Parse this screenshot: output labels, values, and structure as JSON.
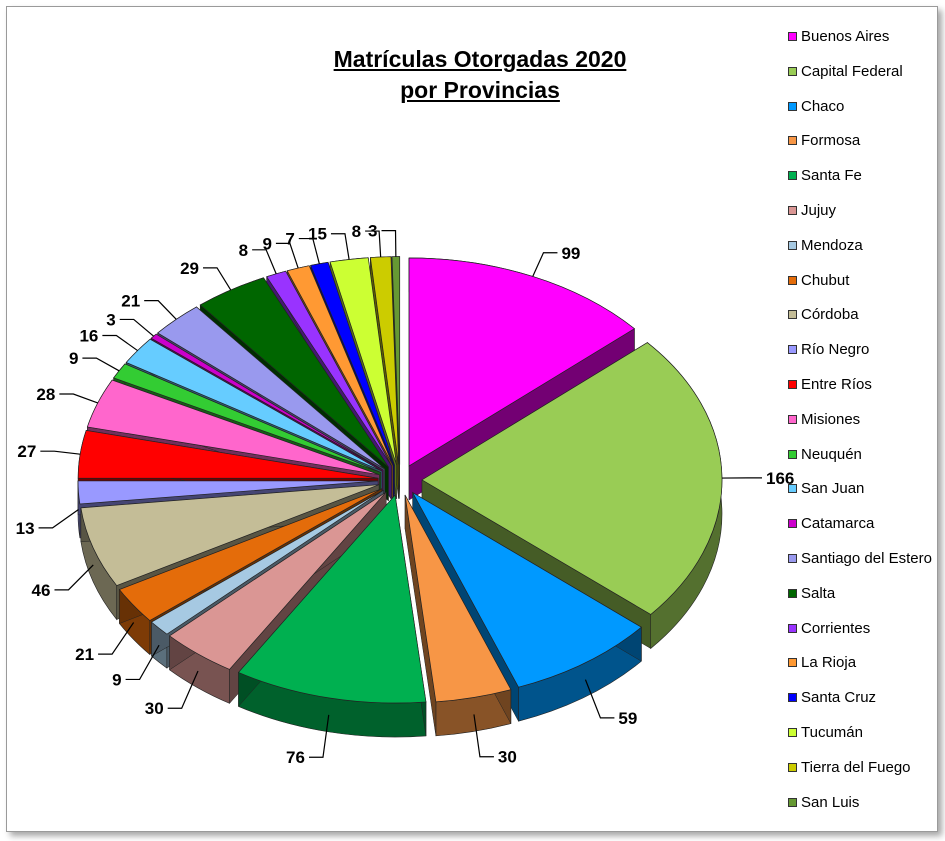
{
  "chart_data": {
    "type": "pie",
    "title_line1": "Matrículas Otorgadas 2020",
    "title_line2": "por Provincias",
    "legend_position": "right",
    "slices": [
      {
        "label": "Buenos Aires",
        "value": 99,
        "color": "#ff00ff"
      },
      {
        "label": "Capital Federal",
        "value": 166,
        "color": "#99cc55"
      },
      {
        "label": "Chaco",
        "value": 59,
        "color": "#0099ff"
      },
      {
        "label": "Formosa",
        "value": 30,
        "color": "#f79646"
      },
      {
        "label": "Santa Fe",
        "value": 76,
        "color": "#00b050"
      },
      {
        "label": "Jujuy",
        "value": 30,
        "color": "#da9694"
      },
      {
        "label": "Mendoza",
        "value": 9,
        "color": "#a6c9e2"
      },
      {
        "label": "Chubut",
        "value": 21,
        "color": "#e46c0a"
      },
      {
        "label": "Córdoba",
        "value": 46,
        "color": "#c4bd97"
      },
      {
        "label": "Río Negro",
        "value": 13,
        "color": "#9999ff"
      },
      {
        "label": "Entre Ríos",
        "value": 27,
        "color": "#ff0000"
      },
      {
        "label": "Misiones",
        "value": 28,
        "color": "#ff66cc"
      },
      {
        "label": "Neuquén",
        "value": 9,
        "color": "#33cc33"
      },
      {
        "label": "San Juan",
        "value": 16,
        "color": "#66ccff"
      },
      {
        "label": "Catamarca",
        "value": 3,
        "color": "#cc00cc"
      },
      {
        "label": "Santiago del Estero",
        "value": 21,
        "color": "#9999ee"
      },
      {
        "label": "Salta",
        "value": 29,
        "color": "#006600"
      },
      {
        "label": "Corrientes",
        "value": 8,
        "color": "#9933ff"
      },
      {
        "label": "La Rioja",
        "value": 9,
        "color": "#ff9933"
      },
      {
        "label": "Santa Cruz",
        "value": 7,
        "color": "#0000ff"
      },
      {
        "label": "Tucumán",
        "value": 15,
        "color": "#ccff33"
      },
      {
        "label": "Tierra del Fuego",
        "value": 8,
        "color": "#cccc00"
      },
      {
        "label": "San Luis",
        "value": 3,
        "color": "#669933"
      }
    ]
  }
}
